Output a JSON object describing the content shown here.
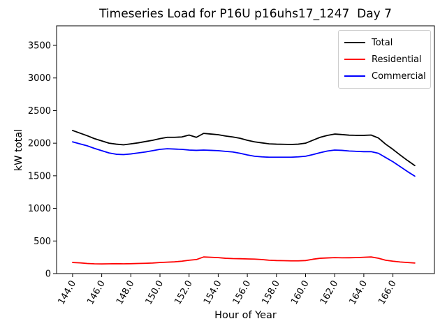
{
  "figure": {
    "title": "Timeseries Load for P16U p16uhs17_1247  Day 7",
    "xlabel": "Hour of Year",
    "ylabel": "kW total"
  },
  "chart_data": {
    "type": "line",
    "title": "Timeseries Load for P16U p16uhs17_1247  Day 7",
    "xlabel": "Hour of Year",
    "ylabel": "kW total",
    "xlim": [
      142.9,
      168.85
    ],
    "ylim": [
      0,
      3800
    ],
    "grid": false,
    "legend_position": "upper right",
    "xtick_rotation": 60,
    "xticks": [
      144,
      146,
      148,
      150,
      152,
      154,
      156,
      158,
      160,
      162,
      164,
      166
    ],
    "xtick_labels": [
      "144.0",
      "146.0",
      "148.0",
      "150.0",
      "152.0",
      "154.0",
      "156.0",
      "158.0",
      "160.0",
      "162.0",
      "164.0",
      "166.0"
    ],
    "yticks": [
      0,
      500,
      1000,
      1500,
      2000,
      2500,
      3000,
      3500
    ],
    "ytick_labels": [
      "0",
      "500",
      "1000",
      "1500",
      "2000",
      "2500",
      "3000",
      "3500"
    ],
    "x": [
      144.0,
      144.5,
      145.0,
      145.5,
      146.0,
      146.5,
      147.0,
      147.5,
      148.0,
      148.5,
      149.0,
      149.5,
      150.0,
      150.5,
      151.0,
      151.5,
      152.0,
      152.5,
      153.0,
      153.5,
      154.0,
      154.5,
      155.0,
      155.5,
      156.0,
      156.5,
      157.0,
      157.5,
      158.0,
      158.5,
      159.0,
      159.5,
      160.0,
      160.5,
      161.0,
      161.5,
      162.0,
      162.5,
      163.0,
      163.5,
      164.0,
      164.5,
      165.0,
      165.5,
      166.0,
      166.5,
      167.0,
      167.5
    ],
    "series": [
      {
        "name": "Total",
        "color": "#000000",
        "values": [
          2195,
          2155,
          2115,
          2070,
          2035,
          2000,
          1985,
          1975,
          1990,
          2005,
          2025,
          2045,
          2070,
          2090,
          2090,
          2095,
          2125,
          2090,
          2150,
          2140,
          2130,
          2110,
          2095,
          2075,
          2045,
          2020,
          2005,
          1990,
          1985,
          1983,
          1980,
          1985,
          2000,
          2045,
          2090,
          2120,
          2140,
          2132,
          2123,
          2120,
          2120,
          2125,
          2080,
          1985,
          1905,
          1818,
          1735,
          1657
        ]
      },
      {
        "name": "Residential",
        "color": "#ff0000",
        "values": [
          170,
          165,
          155,
          150,
          148,
          150,
          152,
          150,
          152,
          155,
          158,
          162,
          170,
          175,
          180,
          190,
          205,
          215,
          255,
          250,
          245,
          235,
          230,
          228,
          225,
          222,
          215,
          205,
          200,
          198,
          195,
          195,
          200,
          220,
          235,
          240,
          245,
          242,
          243,
          245,
          250,
          255,
          235,
          205,
          190,
          178,
          170,
          162
        ]
      },
      {
        "name": "Commercial",
        "color": "#0000ff",
        "values": [
          2020,
          1990,
          1960,
          1920,
          1885,
          1850,
          1830,
          1825,
          1835,
          1850,
          1865,
          1885,
          1905,
          1915,
          1910,
          1905,
          1895,
          1890,
          1895,
          1890,
          1885,
          1875,
          1865,
          1845,
          1820,
          1800,
          1790,
          1785,
          1785,
          1785,
          1785,
          1790,
          1800,
          1825,
          1855,
          1880,
          1895,
          1890,
          1880,
          1875,
          1870,
          1870,
          1845,
          1780,
          1715,
          1640,
          1565,
          1495
        ]
      }
    ]
  }
}
